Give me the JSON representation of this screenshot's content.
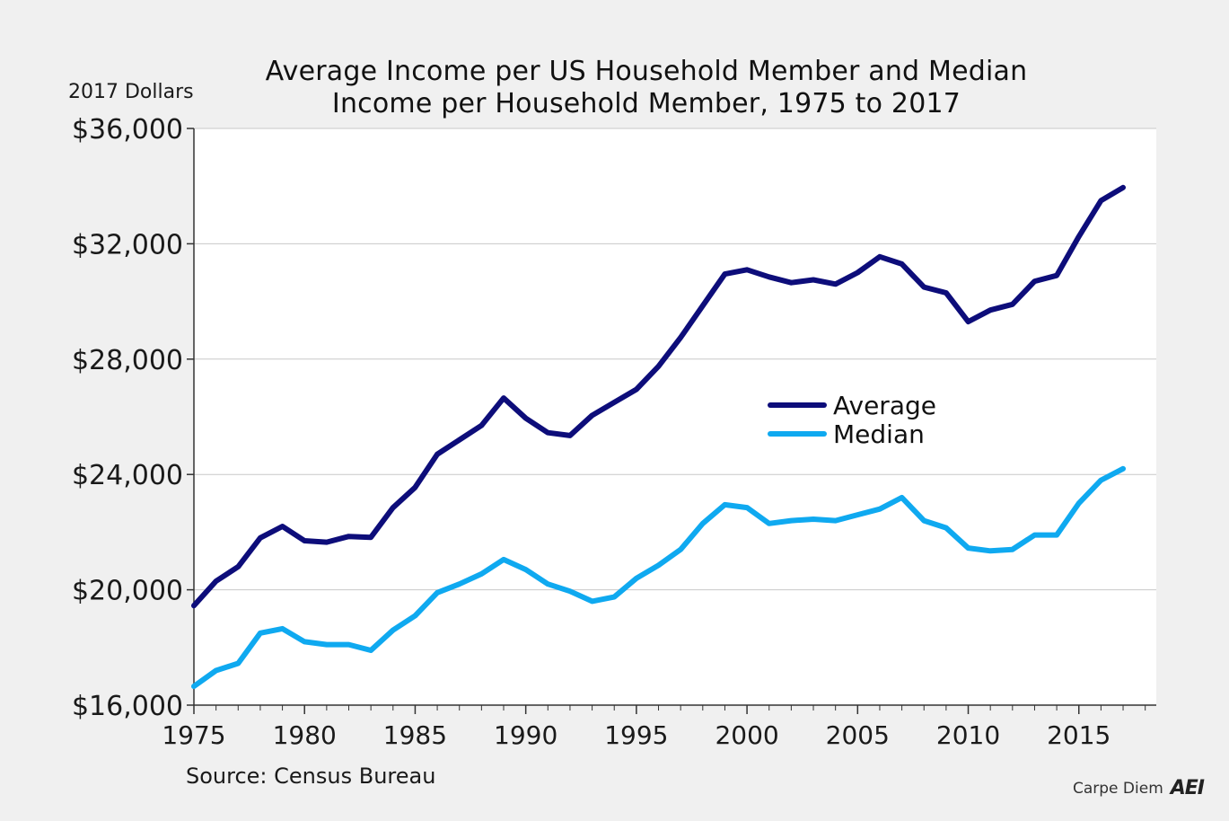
{
  "header": {
    "units_label": "2017 Dollars",
    "title_line_1": "Average Income per US Household Member and Median",
    "title_line_2": "Income per Household Member, 1975 to 2017"
  },
  "footer": {
    "source": "Source: Census Bureau",
    "brand_text": "Carpe Diem",
    "brand_logo_text": "AEI"
  },
  "colors": {
    "background": "#f0f0f0",
    "plot_background": "#ffffff",
    "average": "#0d0d7a",
    "median": "#0fa9f0",
    "gridline": "#c8c8c8",
    "axis": "#333333"
  },
  "chart_data": {
    "type": "line",
    "title": "Average Income per US Household Member and Median Income per Household Member, 1975 to 2017",
    "xlabel": "",
    "ylabel": "2017 Dollars",
    "xlim": [
      1975,
      2018.5
    ],
    "ylim": [
      16000,
      36000
    ],
    "y_ticks": [
      16000,
      20000,
      24000,
      28000,
      32000,
      36000
    ],
    "y_tick_labels": [
      "$16,000",
      "$20,000",
      "$24,000",
      "$28,000",
      "$32,000",
      "$36,000"
    ],
    "x_ticks": [
      1975,
      1980,
      1985,
      1990,
      1995,
      2000,
      2005,
      2010,
      2015
    ],
    "x_tick_labels": [
      "1975",
      "1980",
      "1985",
      "1990",
      "1995",
      "2000",
      "2005",
      "2010",
      "2015"
    ],
    "grid": true,
    "legend_position": "center-right",
    "x": [
      1975,
      1976,
      1977,
      1978,
      1979,
      1980,
      1981,
      1982,
      1983,
      1984,
      1985,
      1986,
      1987,
      1988,
      1989,
      1990,
      1991,
      1992,
      1993,
      1994,
      1995,
      1996,
      1997,
      1998,
      1999,
      2000,
      2001,
      2002,
      2003,
      2004,
      2005,
      2006,
      2007,
      2008,
      2009,
      2010,
      2011,
      2012,
      2013,
      2014,
      2015,
      2016,
      2017
    ],
    "series": [
      {
        "name": "Average",
        "values": [
          19450,
          20300,
          20800,
          21800,
          22200,
          21700,
          21650,
          21850,
          21820,
          22850,
          23550,
          24700,
          25200,
          25700,
          26650,
          25950,
          25450,
          25350,
          26050,
          26500,
          26950,
          27750,
          28750,
          29850,
          30950,
          31100,
          30850,
          30650,
          30750,
          30600,
          31000,
          31550,
          31300,
          30500,
          30300,
          29300,
          29700,
          29900,
          30700,
          30900,
          32250,
          33500,
          33950
        ]
      },
      {
        "name": "Median",
        "values": [
          16650,
          17200,
          17450,
          18500,
          18650,
          18200,
          18100,
          18100,
          17900,
          18600,
          19100,
          19900,
          20200,
          20550,
          21050,
          20700,
          20200,
          19950,
          19600,
          19750,
          20400,
          20850,
          21400,
          22300,
          22950,
          22850,
          22300,
          22400,
          22450,
          22400,
          22600,
          22800,
          23200,
          22400,
          22150,
          21450,
          21350,
          21400,
          21900,
          21900,
          23000,
          23800,
          24200
        ]
      }
    ]
  }
}
